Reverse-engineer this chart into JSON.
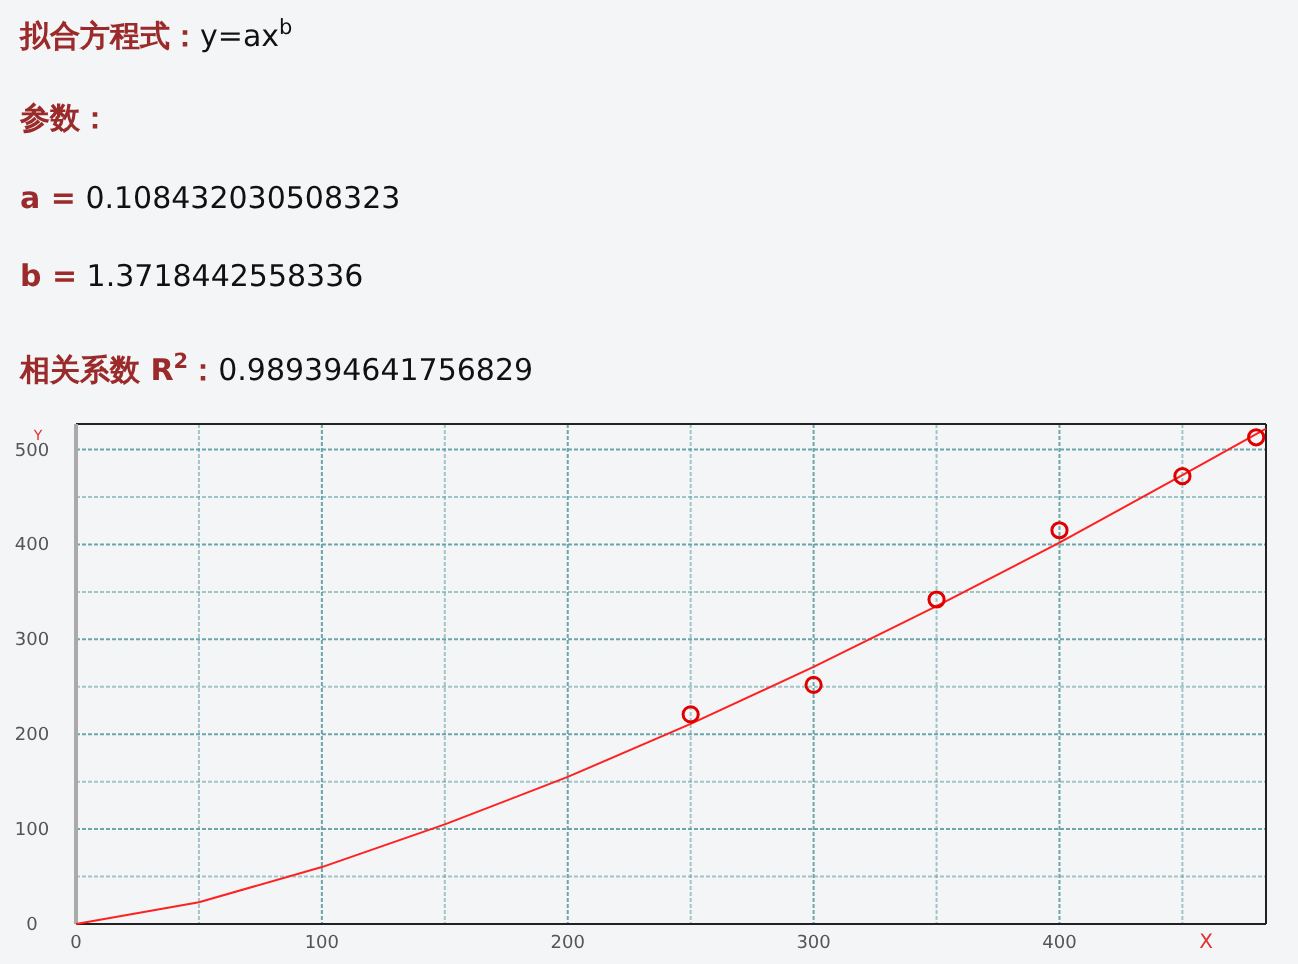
{
  "chart_data": {
    "type": "scatter",
    "title": "**拟合方程式：**y=ax$^{b}$",
    "annotations": [
      "**参数：**",
      "**a =** 0.108432030508323",
      "**b =** 1.3718442558336",
      "**相关系数 R$^{2}$：**0.989394641756829"
    ],
    "xlabel": "X",
    "ylabel": "Y",
    "xlim": [
      0,
      484
    ],
    "ylim": [
      0,
      527
    ],
    "xticks": [
      0,
      {
        "value": 50,
        "label": null
      },
      100,
      {
        "value": 150,
        "label": null
      },
      200,
      {
        "value": 250,
        "label": null
      },
      300,
      {
        "value": 350,
        "label": null
      },
      400,
      {
        "value": 450,
        "label": null
      }
    ],
    "yticks": [
      0,
      {
        "value": 50,
        "label": null
      },
      100,
      {
        "value": 150,
        "label": null
      },
      200,
      {
        "value": 250,
        "label": null
      },
      300,
      {
        "value": 350,
        "label": null
      },
      400,
      {
        "value": 450,
        "label": null
      },
      500
    ],
    "grid": true,
    "series": [
      {
        "type": "line",
        "color": "#ff2020",
        "marker": "none",
        "x": [
          0,
          50,
          100,
          150,
          200,
          250,
          300,
          350,
          400,
          450,
          484
        ],
        "values": [
          0,
          23,
          60,
          105,
          155,
          211,
          271,
          335,
          402,
          473,
          522
        ]
      },
      {
        "color": "#e00000",
        "marker": "circle",
        "x": [
          250,
          300,
          350,
          400,
          450,
          480
        ],
        "values": [
          221,
          252,
          342,
          415,
          472,
          513
        ]
      }
    ]
  }
}
